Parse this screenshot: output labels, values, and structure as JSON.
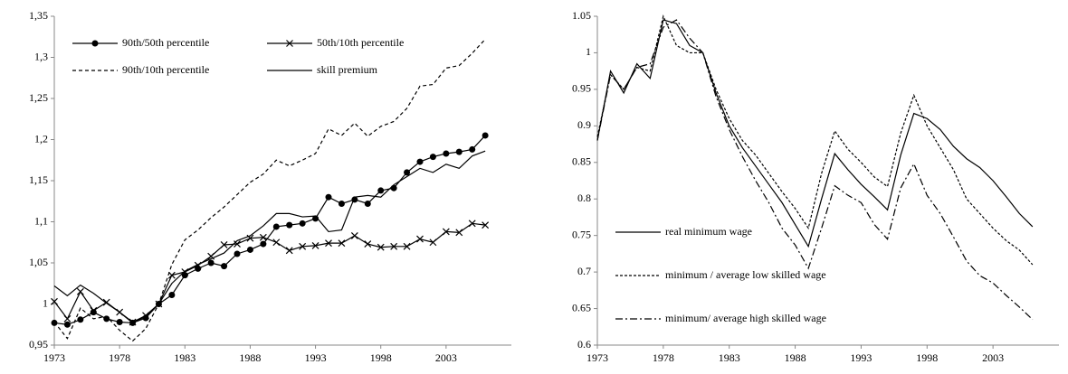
{
  "chart_data": [
    {
      "type": "line",
      "legend": "upper left",
      "x": [
        1973,
        1974,
        1975,
        1976,
        1977,
        1978,
        1979,
        1980,
        1981,
        1982,
        1983,
        1984,
        1985,
        1986,
        1987,
        1988,
        1989,
        1990,
        1991,
        1992,
        1993,
        1994,
        1995,
        1996,
        1997,
        1998,
        1999,
        2000,
        2001,
        2002,
        2003,
        2004,
        2005,
        2006
      ],
      "xlim": [
        1973,
        2008
      ],
      "xticks": [
        1973,
        1978,
        1983,
        1988,
        1993,
        1998,
        2003
      ],
      "ylim": [
        0.95,
        1.35
      ],
      "yticks": [
        {
          "value": 0.95,
          "label": "0,95"
        },
        1,
        {
          "value": 1.05,
          "label": "1,05"
        },
        {
          "value": 1.1,
          "label": "1,1"
        },
        {
          "value": 1.15,
          "label": "1,15"
        },
        {
          "value": 1.2,
          "label": "1,2"
        },
        {
          "value": 1.25,
          "label": "1,25"
        },
        {
          "value": 1.3,
          "label": "1,3"
        },
        {
          "value": 1.35,
          "label": "1,35"
        }
      ],
      "series": [
        {
          "name": "90th/50th percentile",
          "color": "#000000",
          "marker": "circle",
          "dash": "none",
          "values": [
            0.977,
            0.975,
            0.981,
            0.99,
            0.982,
            0.978,
            0.977,
            0.983,
            1.0,
            1.011,
            1.035,
            1.043,
            1.05,
            1.046,
            1.061,
            1.066,
            1.073,
            1.094,
            1.096,
            1.098,
            1.104,
            1.13,
            1.122,
            1.127,
            1.122,
            1.138,
            1.141,
            1.16,
            1.173,
            1.179,
            1.183,
            1.185,
            1.188,
            1.205
          ]
        },
        {
          "name": "50th/10th percentile",
          "color": "#000000",
          "marker": "x",
          "dash": "none",
          "values": [
            1.003,
            0.982,
            1.015,
            0.992,
            1.002,
            0.99,
            0.978,
            0.986,
            1.0,
            1.035,
            1.039,
            1.047,
            1.058,
            1.072,
            1.073,
            1.08,
            1.081,
            1.075,
            1.065,
            1.07,
            1.071,
            1.074,
            1.074,
            1.083,
            1.073,
            1.069,
            1.07,
            1.07,
            1.079,
            1.075,
            1.088,
            1.087,
            1.098,
            1.096
          ]
        },
        {
          "name": "90th/10th percentile",
          "color": "#000000",
          "marker": "none",
          "dash": "4,3",
          "values": [
            0.978,
            0.958,
            0.995,
            0.982,
            0.985,
            0.968,
            0.955,
            0.97,
            1.0,
            1.048,
            1.078,
            1.09,
            1.105,
            1.118,
            1.133,
            1.148,
            1.158,
            1.175,
            1.168,
            1.175,
            1.183,
            1.213,
            1.205,
            1.22,
            1.204,
            1.216,
            1.222,
            1.238,
            1.265,
            1.267,
            1.287,
            1.29,
            1.305,
            1.322
          ]
        },
        {
          "name": "skill premium",
          "color": "#000000",
          "marker": "none",
          "dash": "none",
          "values": [
            1.022,
            1.01,
            1.023,
            1.013,
            1.001,
            0.99,
            0.977,
            0.985,
            1.0,
            1.025,
            1.04,
            1.048,
            1.055,
            1.062,
            1.077,
            1.083,
            1.095,
            1.11,
            1.11,
            1.106,
            1.107,
            1.088,
            1.09,
            1.13,
            1.132,
            1.13,
            1.145,
            1.155,
            1.165,
            1.16,
            1.17,
            1.165,
            1.18,
            1.186
          ]
        }
      ]
    },
    {
      "type": "line",
      "legend": "lower left",
      "x": [
        1973,
        1974,
        1975,
        1976,
        1977,
        1978,
        1979,
        1980,
        1981,
        1982,
        1983,
        1984,
        1985,
        1986,
        1987,
        1988,
        1989,
        1990,
        1991,
        1992,
        1993,
        1994,
        1995,
        1996,
        1997,
        1998,
        1999,
        2000,
        2001,
        2002,
        2003,
        2004,
        2005,
        2006
      ],
      "xlim": [
        1973,
        2008
      ],
      "xticks": [
        1973,
        1978,
        1983,
        1988,
        1993,
        1998,
        2003
      ],
      "ylim": [
        0.6,
        1.05
      ],
      "yticks": [
        0.6,
        0.65,
        0.7,
        0.75,
        0.8,
        0.85,
        0.9,
        0.95,
        1,
        1.05
      ],
      "series": [
        {
          "name": "real minimum wage",
          "color": "#000000",
          "marker": "none",
          "dash": "none",
          "values": [
            0.88,
            0.975,
            0.945,
            0.985,
            0.965,
            1.045,
            1.04,
            1.01,
            1.0,
            0.945,
            0.9,
            0.87,
            0.845,
            0.82,
            0.795,
            0.765,
            0.735,
            0.8,
            0.862,
            0.84,
            0.82,
            0.803,
            0.785,
            0.86,
            0.917,
            0.91,
            0.895,
            0.872,
            0.855,
            0.843,
            0.825,
            0.803,
            0.78,
            0.762
          ]
        },
        {
          "name": "minimum / average low skilled wage",
          "color": "#000000",
          "marker": "none",
          "dash": "3,2",
          "values": [
            0.885,
            0.97,
            0.95,
            0.98,
            0.975,
            1.05,
            1.01,
            1.0,
            1.0,
            0.95,
            0.91,
            0.88,
            0.86,
            0.835,
            0.81,
            0.787,
            0.76,
            0.835,
            0.893,
            0.868,
            0.85,
            0.83,
            0.817,
            0.89,
            0.942,
            0.9,
            0.87,
            0.84,
            0.8,
            0.78,
            0.76,
            0.743,
            0.73,
            0.71
          ]
        },
        {
          "name": "minimum/ average high skilled wage",
          "color": "#000000",
          "marker": "none",
          "dash": "8,3,2,3",
          "values": [
            0.88,
            0.97,
            0.95,
            0.98,
            0.985,
            1.035,
            1.045,
            1.02,
            1.0,
            0.94,
            0.895,
            0.858,
            0.825,
            0.795,
            0.76,
            0.737,
            0.705,
            0.76,
            0.818,
            0.805,
            0.795,
            0.765,
            0.745,
            0.815,
            0.848,
            0.805,
            0.78,
            0.748,
            0.715,
            0.695,
            0.685,
            0.668,
            0.652,
            0.635
          ]
        }
      ]
    }
  ]
}
